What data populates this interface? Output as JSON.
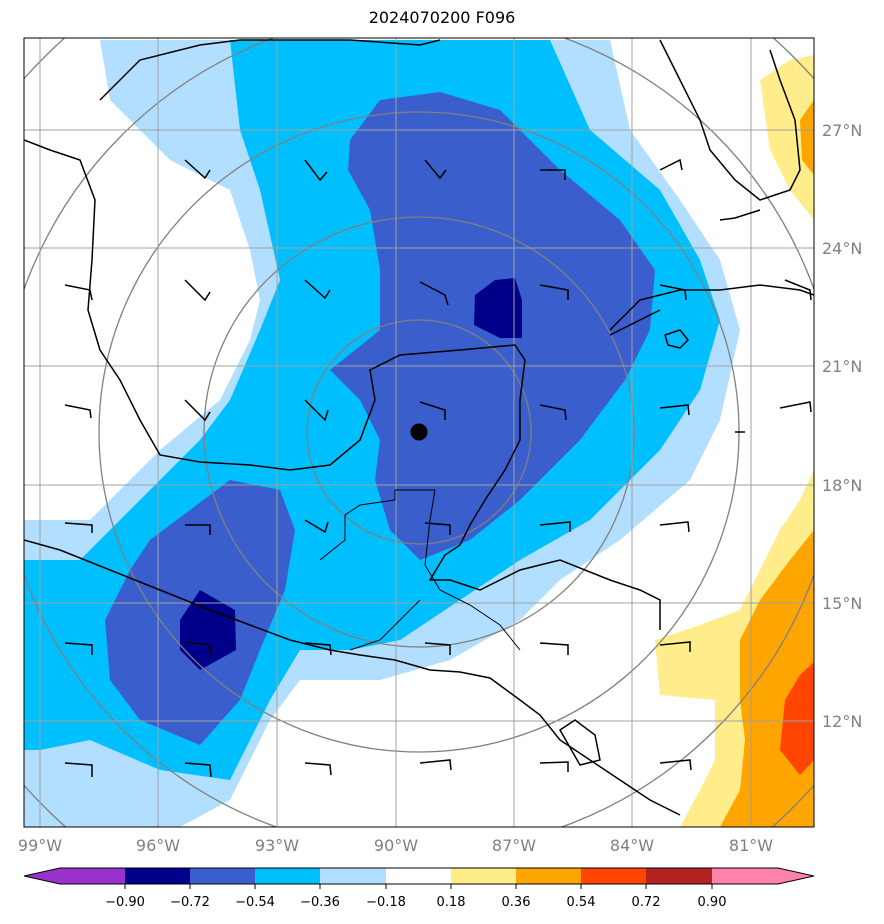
{
  "title": "2024070200 F096",
  "lon_labels": [
    "99°W",
    "96°W",
    "93°W",
    "90°W",
    "87°W",
    "84°W",
    "81°W"
  ],
  "lat_labels": [
    "27°N",
    "24°N",
    "21°N",
    "18°N",
    "15°N",
    "12°N"
  ],
  "colorbar": {
    "ticks": [
      "−0.90",
      "−0.72",
      "−0.54",
      "−0.36",
      "−0.18",
      "0.18",
      "0.36",
      "0.54",
      "0.72",
      "0.90"
    ],
    "colors": [
      "#9932cc",
      "#00008b",
      "#3a5fcd",
      "#00bfff",
      "#b2dfff",
      "#ffffff",
      "#ffec8b",
      "#ffa500",
      "#ff4500",
      "#b22222",
      "#ff82ab"
    ]
  },
  "center_marker": {
    "lon": -89.4,
    "lat": 19.3
  },
  "map_extent": {
    "lon_min": -99.4,
    "lon_max": -79.4,
    "lat_min": 9.6,
    "lat_max": 29.6
  }
}
